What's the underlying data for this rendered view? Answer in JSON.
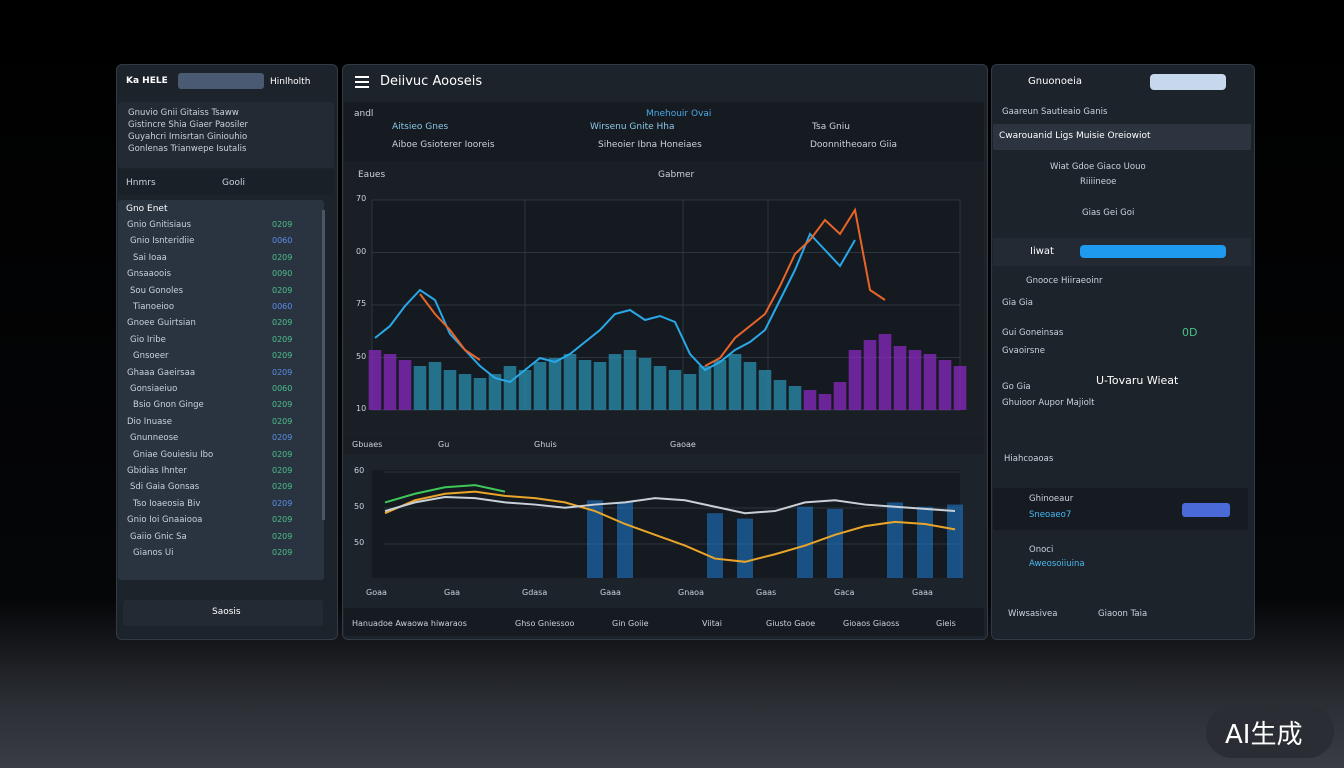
{
  "left": {
    "header_input": "Ka HELE",
    "header_title": "Hinlholth",
    "description": [
      "Gnuvio Gnii Gitaiss Tsaww",
      "Gistincre Shia Giaer Paosiler",
      "Guyahcri Irnisrtan Giniouhio",
      "Gonlenas Trianwepe Isutalis"
    ],
    "filter": [
      "Hnmrs",
      "Gooli"
    ],
    "list_title": "Gno Enet",
    "items": [
      [
        "Gnio Gnitisiaus",
        "0209"
      ],
      [
        "Gnio Isnteridiie",
        "0060"
      ],
      [
        "Sai Ioaa",
        "0209"
      ],
      [
        "Gnsaaoois",
        "0090"
      ],
      [
        "Sou Gonoles",
        "0209"
      ],
      [
        "Tianoeioo",
        "0060"
      ],
      [
        "Gnoee Guirtsian",
        "0209"
      ],
      [
        "Gio Iribe",
        "0209"
      ],
      [
        "Gnsoeer",
        "0209"
      ],
      [
        "Ghaaa Gaeirsaa",
        "0209"
      ],
      [
        "Gonsiaeiuo",
        "0060"
      ],
      [
        "Bsio Gnon Ginge",
        "0209"
      ],
      [
        "Dio Inuase",
        "0209"
      ],
      [
        "Gnunneose",
        "0209"
      ],
      [
        "Gniae Gouiesiu Ibo",
        "0209"
      ],
      [
        "Gbidias Ihnter",
        "0209"
      ],
      [
        "Sdi Gaia Gonsas",
        "0209"
      ],
      [
        "Tso Ioaeosia Biv",
        "0209"
      ],
      [
        "Gnio Ioi Gnaaiooa",
        "0209"
      ],
      [
        "Gaiio Gnic Sa",
        "0209"
      ],
      [
        "Gianos Ui",
        "0209"
      ]
    ],
    "button": "Saosis"
  },
  "center": {
    "title": "Deiivuc Aooseis",
    "header_left": "andl",
    "header_cells": [
      "Aitsieo Gnes",
      "Mnehouir Ovai",
      "Wirsenu Gnite Hha",
      "Tsa Gniu",
      "Aiboe Gsioterer Iooreis",
      "Siheoier Ibna Honeiaes",
      "Doonnitheoaro Giia"
    ],
    "chart1_label": "Eaues",
    "chart1_title": "Gabmer",
    "chart1_ytick_labels": [
      "70",
      "00",
      "75",
      "50",
      "10"
    ],
    "chart1_footer": [
      "Gbuaes",
      "Gu",
      "Ghuis",
      "Gaoae"
    ],
    "chart2_ytick_labels": [
      "60",
      "50",
      "50"
    ],
    "chart2_xlabels": [
      "Goaa",
      "Gaa",
      "Gdasa",
      "Gaaa",
      "Gnaoa",
      "Gaas",
      "Gaca",
      "Gaaa"
    ],
    "footer": [
      "Hanuadoe Awaowa hiwaraos",
      "Ghso Gniessoo",
      "Gin Goiie",
      "Viitai",
      "Giusto Gaoe",
      "Gioaos Giaoss",
      "Gieis"
    ]
  },
  "main_chart": {
    "ylim": [
      0,
      105
    ],
    "lines": [
      {
        "color": "#29a8e8",
        "values": [
          36,
          42,
          52,
          60,
          55,
          38,
          30,
          22,
          16,
          14,
          20,
          26,
          24,
          28,
          34,
          40,
          48,
          50,
          45,
          47,
          44,
          28,
          20,
          24,
          30,
          34,
          40,
          55,
          70,
          88,
          80,
          72,
          85,
          null,
          null,
          null,
          null,
          null,
          null,
          null
        ]
      },
      {
        "color": "#e8652a",
        "values": [
          null,
          null,
          null,
          58,
          48,
          40,
          30,
          25,
          null,
          null,
          null,
          null,
          null,
          null,
          null,
          null,
          null,
          null,
          null,
          null,
          null,
          null,
          22,
          26,
          36,
          42,
          48,
          62,
          78,
          85,
          95,
          88,
          100,
          60,
          55,
          null,
          null,
          null,
          null,
          null
        ]
      }
    ],
    "bars": [
      {
        "color": "#2a8fb0",
        "values": [
          null,
          null,
          null,
          22,
          24,
          20,
          18,
          16,
          18,
          22,
          20,
          24,
          26,
          28,
          25,
          24,
          28,
          30,
          26,
          22,
          20,
          18,
          22,
          25,
          28,
          24,
          20,
          15,
          12,
          null,
          null,
          null,
          null,
          null,
          null,
          null,
          null,
          null,
          null,
          null
        ]
      },
      {
        "color": "#8a2ac0",
        "values": [
          30,
          28,
          25,
          null,
          null,
          null,
          null,
          null,
          null,
          null,
          null,
          null,
          null,
          null,
          null,
          null,
          null,
          null,
          null,
          null,
          null,
          null,
          null,
          null,
          null,
          null,
          null,
          null,
          null,
          10,
          8,
          14,
          30,
          35,
          38,
          32,
          30,
          28,
          25,
          22
        ]
      }
    ]
  },
  "lower_chart": {
    "ylim": [
      0,
      100
    ],
    "bars": {
      "color": "#1e7fd8",
      "values": [
        null,
        null,
        null,
        null,
        null,
        null,
        null,
        72,
        70,
        null,
        null,
        60,
        55,
        null,
        66,
        64,
        null,
        70,
        66,
        68
      ]
    },
    "lines": [
      {
        "color": "#e8a52a",
        "values": [
          60,
          72,
          78,
          80,
          76,
          74,
          70,
          62,
          50,
          40,
          30,
          18,
          15,
          22,
          30,
          40,
          48,
          52,
          50,
          45
        ]
      },
      {
        "color": "#c8d0d8",
        "values": [
          62,
          70,
          75,
          74,
          70,
          68,
          65,
          68,
          70,
          74,
          72,
          66,
          60,
          62,
          70,
          72,
          68,
          66,
          64,
          62
        ]
      },
      {
        "color": "#3fc85a",
        "values": [
          70,
          78,
          84,
          86,
          80,
          null,
          null,
          null,
          null,
          null,
          null,
          null,
          null,
          null,
          null,
          null,
          null,
          null,
          null,
          null
        ]
      }
    ]
  },
  "right": {
    "title": "Gnuonoeia",
    "subtitle": "Gaareun Sautieaio Ganis",
    "bar": "Cwarouanid Ligs Muisie Oreiowiot",
    "rows": [
      "Wiat Gdoe Giaco Uouo",
      "Riiiineoe",
      "Gias Gei Goi"
    ],
    "progress_label": "Iiwat",
    "items": [
      "Gnooce Hiiraeoinr",
      "Gia Gia",
      "Gui Goneinsas",
      "Gvaoirsne",
      "Go Gia",
      "U-Tovaru Wieat",
      "Ghuioor Aupor Majiolt",
      "Hiahcoaoas",
      "Ghinoeaur",
      "Sneoaeo7",
      "Onoci",
      "Aweosoiiuina",
      "Wiwsasivea",
      "Giaoon Taia"
    ],
    "stat": "0D"
  },
  "watermark": "AI生成"
}
